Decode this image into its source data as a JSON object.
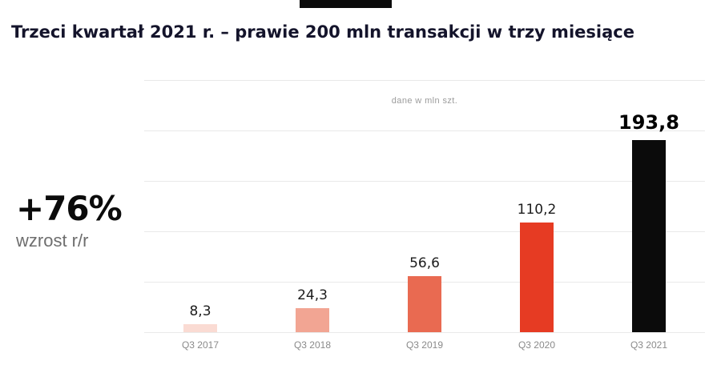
{
  "page": {
    "title": "Trzeci kwartał 2021 r. – prawie 200 mln transakcji w trzy miesiące"
  },
  "highlight": {
    "value": "+76%",
    "label": "wzrost r/r"
  },
  "chart_data": {
    "type": "bar",
    "title": "dane w mln szt.",
    "categories": [
      "Q3 2017",
      "Q3 2018",
      "Q3 2019",
      "Q3 2020",
      "Q3 2021"
    ],
    "values": [
      8.3,
      24.3,
      56.6,
      110.2,
      193.8
    ],
    "value_labels": [
      "8,3",
      "24,3",
      "56,6",
      "110,2",
      "193,8"
    ],
    "bar_colors": [
      "#fadbd3",
      "#f2a593",
      "#e96a51",
      "#e63b23",
      "#0b0b0b"
    ],
    "emphasized_index": 4,
    "xlabel": "",
    "ylabel": "",
    "ylim": [
      0,
      200
    ],
    "grid": true,
    "gridline_count": 6,
    "legend": false
  },
  "colors": {
    "title_text": "#14142b",
    "gridline": "#e9e9e9",
    "subtitle_text": "#9b9b9b",
    "axis_label_text": "#8a8a8a",
    "highlight_value_text": "#0b0b0b",
    "highlight_label_text": "#6e6e6e"
  }
}
